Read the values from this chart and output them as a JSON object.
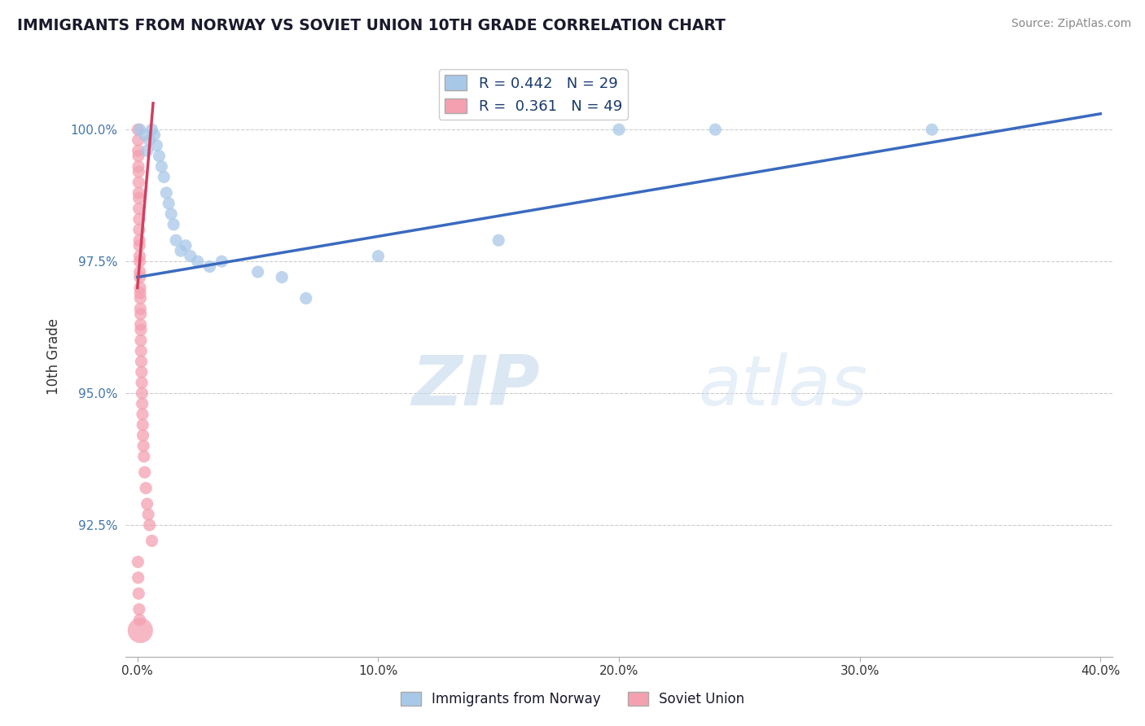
{
  "title": "IMMIGRANTS FROM NORWAY VS SOVIET UNION 10TH GRADE CORRELATION CHART",
  "source": "Source: ZipAtlas.com",
  "ylabel": "10th Grade",
  "xlim": [
    0.0,
    40.0
  ],
  "ylim": [
    90.5,
    101.2
  ],
  "yticks": [
    92.5,
    95.0,
    97.5,
    100.0
  ],
  "ytick_labels": [
    "92.5%",
    "95.0%",
    "97.5%",
    "100.0%"
  ],
  "xticks": [
    0.0,
    10.0,
    20.0,
    30.0,
    40.0
  ],
  "xtick_labels": [
    "0.0%",
    "10.0%",
    "20.0%",
    "30.0%",
    "40.0%"
  ],
  "norway_R": 0.442,
  "norway_N": 29,
  "soviet_R": 0.361,
  "soviet_N": 49,
  "norway_color": "#a8c8e8",
  "soviet_color": "#f4a0b0",
  "norway_line_color": "#3a6abf",
  "soviet_line_color": "#d04060",
  "watermark_zip": "ZIP",
  "watermark_atlas": "atlas",
  "norway_x": [
    0.1,
    0.5,
    0.6,
    0.7,
    0.8,
    0.9,
    1.0,
    1.1,
    1.2,
    1.3,
    1.4,
    1.5,
    2.0,
    2.2,
    2.5,
    3.0,
    5.0,
    6.0,
    7.0,
    20.0,
    24.0,
    33.0,
    0.3,
    0.4,
    1.6,
    1.8,
    3.5,
    10.0,
    15.0
  ],
  "norway_y": [
    100.0,
    99.8,
    100.0,
    99.9,
    99.7,
    99.5,
    99.3,
    99.1,
    98.8,
    98.6,
    98.4,
    98.2,
    97.8,
    97.6,
    97.5,
    97.4,
    97.3,
    97.2,
    96.8,
    100.0,
    100.0,
    100.0,
    99.9,
    99.6,
    97.9,
    97.7,
    97.5,
    97.6,
    97.9
  ],
  "norway_sizes": [
    120,
    120,
    120,
    120,
    120,
    120,
    120,
    120,
    120,
    120,
    120,
    120,
    120,
    120,
    120,
    120,
    120,
    120,
    120,
    120,
    120,
    120,
    120,
    120,
    120,
    120,
    120,
    120,
    120
  ],
  "soviet_x": [
    0.02,
    0.03,
    0.03,
    0.04,
    0.04,
    0.05,
    0.05,
    0.05,
    0.06,
    0.06,
    0.07,
    0.07,
    0.08,
    0.08,
    0.09,
    0.09,
    0.1,
    0.1,
    0.11,
    0.11,
    0.12,
    0.12,
    0.13,
    0.13,
    0.14,
    0.14,
    0.15,
    0.16,
    0.17,
    0.18,
    0.19,
    0.2,
    0.21,
    0.22,
    0.23,
    0.25,
    0.27,
    0.3,
    0.35,
    0.4,
    0.45,
    0.5,
    0.6,
    0.02,
    0.03,
    0.05,
    0.07,
    0.09,
    0.12
  ],
  "soviet_y": [
    100.0,
    99.8,
    99.6,
    99.5,
    99.3,
    99.2,
    99.0,
    98.8,
    98.7,
    98.5,
    98.3,
    98.1,
    97.9,
    97.8,
    97.6,
    97.5,
    97.3,
    97.2,
    97.0,
    96.9,
    96.8,
    96.6,
    96.5,
    96.3,
    96.2,
    96.0,
    95.8,
    95.6,
    95.4,
    95.2,
    95.0,
    94.8,
    94.6,
    94.4,
    94.2,
    94.0,
    93.8,
    93.5,
    93.2,
    92.9,
    92.7,
    92.5,
    92.2,
    91.8,
    91.5,
    91.2,
    90.9,
    90.7,
    90.5
  ],
  "soviet_sizes": [
    120,
    120,
    120,
    120,
    120,
    120,
    120,
    120,
    120,
    120,
    120,
    120,
    120,
    120,
    120,
    120,
    120,
    120,
    120,
    120,
    120,
    120,
    120,
    120,
    120,
    120,
    120,
    120,
    120,
    120,
    120,
    120,
    120,
    120,
    120,
    120,
    120,
    120,
    120,
    120,
    120,
    120,
    120,
    120,
    120,
    120,
    120,
    120,
    500
  ],
  "norway_line_x": [
    0.0,
    40.0
  ],
  "norway_line_y": [
    97.2,
    100.3
  ],
  "soviet_line_x": [
    0.0,
    0.65
  ],
  "soviet_line_y": [
    97.0,
    100.5
  ]
}
